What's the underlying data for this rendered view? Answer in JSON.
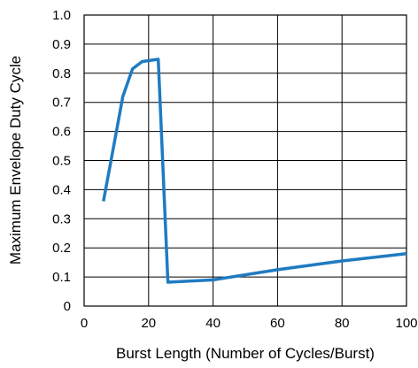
{
  "chart_data": {
    "type": "line",
    "title": "",
    "xlabel": "Burst Length (Number of Cycles/Burst)",
    "ylabel": "Maximum Envelope Duty Cycle",
    "xlim": [
      0,
      100
    ],
    "ylim": [
      0,
      1.0
    ],
    "x_ticks": [
      "0",
      "20",
      "40",
      "60",
      "80",
      "100"
    ],
    "y_ticks": [
      "0",
      "0.1",
      "0.2",
      "0.3",
      "0.4",
      "0.5",
      "0.6",
      "0.7",
      "0.8",
      "0.9",
      "1.0"
    ],
    "grid": true,
    "series": [
      {
        "color": "#1f7bc1",
        "x": [
          6,
          9,
          12,
          15,
          18,
          21,
          23,
          26,
          40,
          60,
          80,
          100
        ],
        "y": [
          0.36,
          0.54,
          0.72,
          0.815,
          0.84,
          0.845,
          0.848,
          0.082,
          0.09,
          0.125,
          0.155,
          0.18
        ]
      }
    ]
  }
}
